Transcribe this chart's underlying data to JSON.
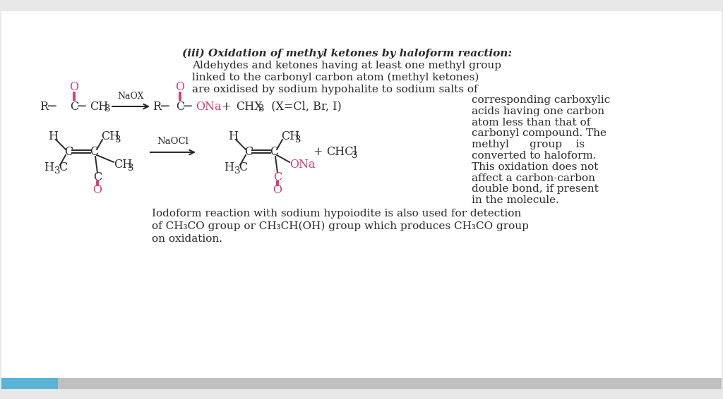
{
  "background_color": "#e8e8e8",
  "page_bg": "#ffffff",
  "pink": "#d63a7a",
  "black": "#2a2a2a",
  "blue_bar": "#5ab4d6",
  "gray_bar": "#c0c0c0",
  "title_line1": "(iii) Oxidation of methyl ketones by haloform reaction:",
  "title_line2": "Aldehydes and ketones having at least one methyl group",
  "title_line3": "linked to the carbonyl carbon atom (methyl ketones)",
  "title_line4": "are oxidised by sodium hypohalite to sodium salts of",
  "right_col": "corresponding carboxylic\nacids having one carbon\natom less than that of\ncarbonyl compound. The\nmethyl      group    is\nconverted to haloform.\nThis oxidation does not\naffect a carbon-carbon\ndouble bond, if present\nin the molecule.",
  "bottom1": "Iodoform reaction with sodium hypoiodite is also used for detection",
  "bottom2": "of CH₃CO group or CH₃CH(OH) group which produces CH₃CO group",
  "bottom3": "on oxidation.",
  "fontsize_main": 11.5,
  "fontsize_small": 9.5,
  "fontsize_sub": 7.5
}
